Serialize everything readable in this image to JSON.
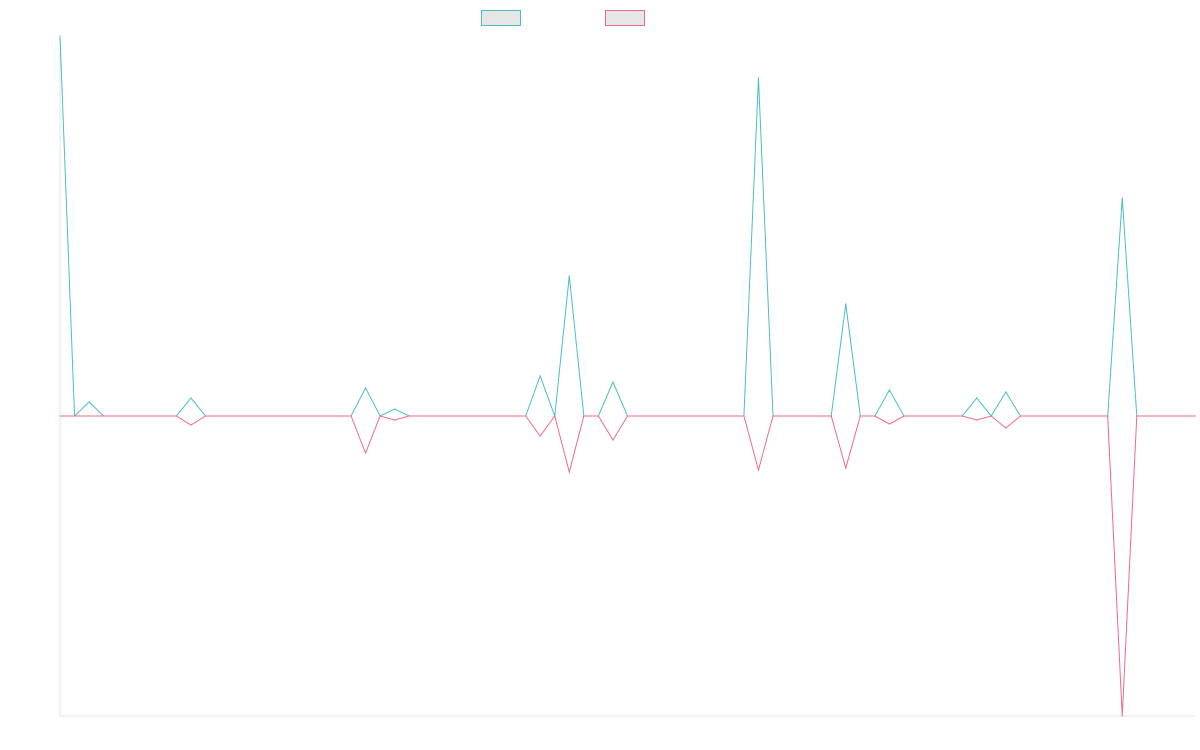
{
  "chart_data": {
    "type": "line",
    "title": "",
    "xlabel": "",
    "ylabel": "",
    "legend_position": "top-center",
    "grid": false,
    "ylim": [
      -300,
      380
    ],
    "x_count": 79,
    "series": [
      {
        "legend_swatch_fill": "#e6e6e6",
        "color": "#4bbfbf",
        "points": [
          [
            0,
            380
          ],
          [
            1,
            0
          ],
          [
            2,
            14
          ],
          [
            3,
            0
          ],
          [
            8,
            0
          ],
          [
            9,
            18
          ],
          [
            10,
            0
          ],
          [
            21,
            28
          ],
          [
            22,
            0
          ],
          [
            23,
            7
          ],
          [
            24,
            0
          ],
          [
            33,
            40
          ],
          [
            34,
            0
          ],
          [
            35,
            140
          ],
          [
            36,
            0
          ],
          [
            38,
            34
          ],
          [
            39,
            0
          ],
          [
            48,
            338
          ],
          [
            49,
            0
          ],
          [
            54,
            112
          ],
          [
            55,
            0
          ],
          [
            57,
            26
          ],
          [
            58,
            0
          ],
          [
            63,
            18
          ],
          [
            64,
            0
          ],
          [
            65,
            24
          ],
          [
            66,
            0
          ],
          [
            73,
            218
          ],
          [
            74,
            0
          ]
        ]
      },
      {
        "legend_swatch_fill": "#e6e6e6",
        "color": "#f06a8b",
        "points": [
          [
            0,
            0
          ],
          [
            8,
            0
          ],
          [
            9,
            -9
          ],
          [
            10,
            0
          ],
          [
            21,
            -37
          ],
          [
            22,
            0
          ],
          [
            23,
            -4
          ],
          [
            24,
            0
          ],
          [
            33,
            -20
          ],
          [
            34,
            0
          ],
          [
            35,
            -56
          ],
          [
            36,
            0
          ],
          [
            38,
            -24
          ],
          [
            39,
            0
          ],
          [
            48,
            -54
          ],
          [
            49,
            0
          ],
          [
            54,
            -52
          ],
          [
            55,
            0
          ],
          [
            57,
            -8
          ],
          [
            58,
            0
          ],
          [
            63,
            -4
          ],
          [
            64,
            0
          ],
          [
            65,
            -12
          ],
          [
            66,
            0
          ],
          [
            73,
            -300
          ],
          [
            74,
            0
          ]
        ]
      }
    ]
  }
}
